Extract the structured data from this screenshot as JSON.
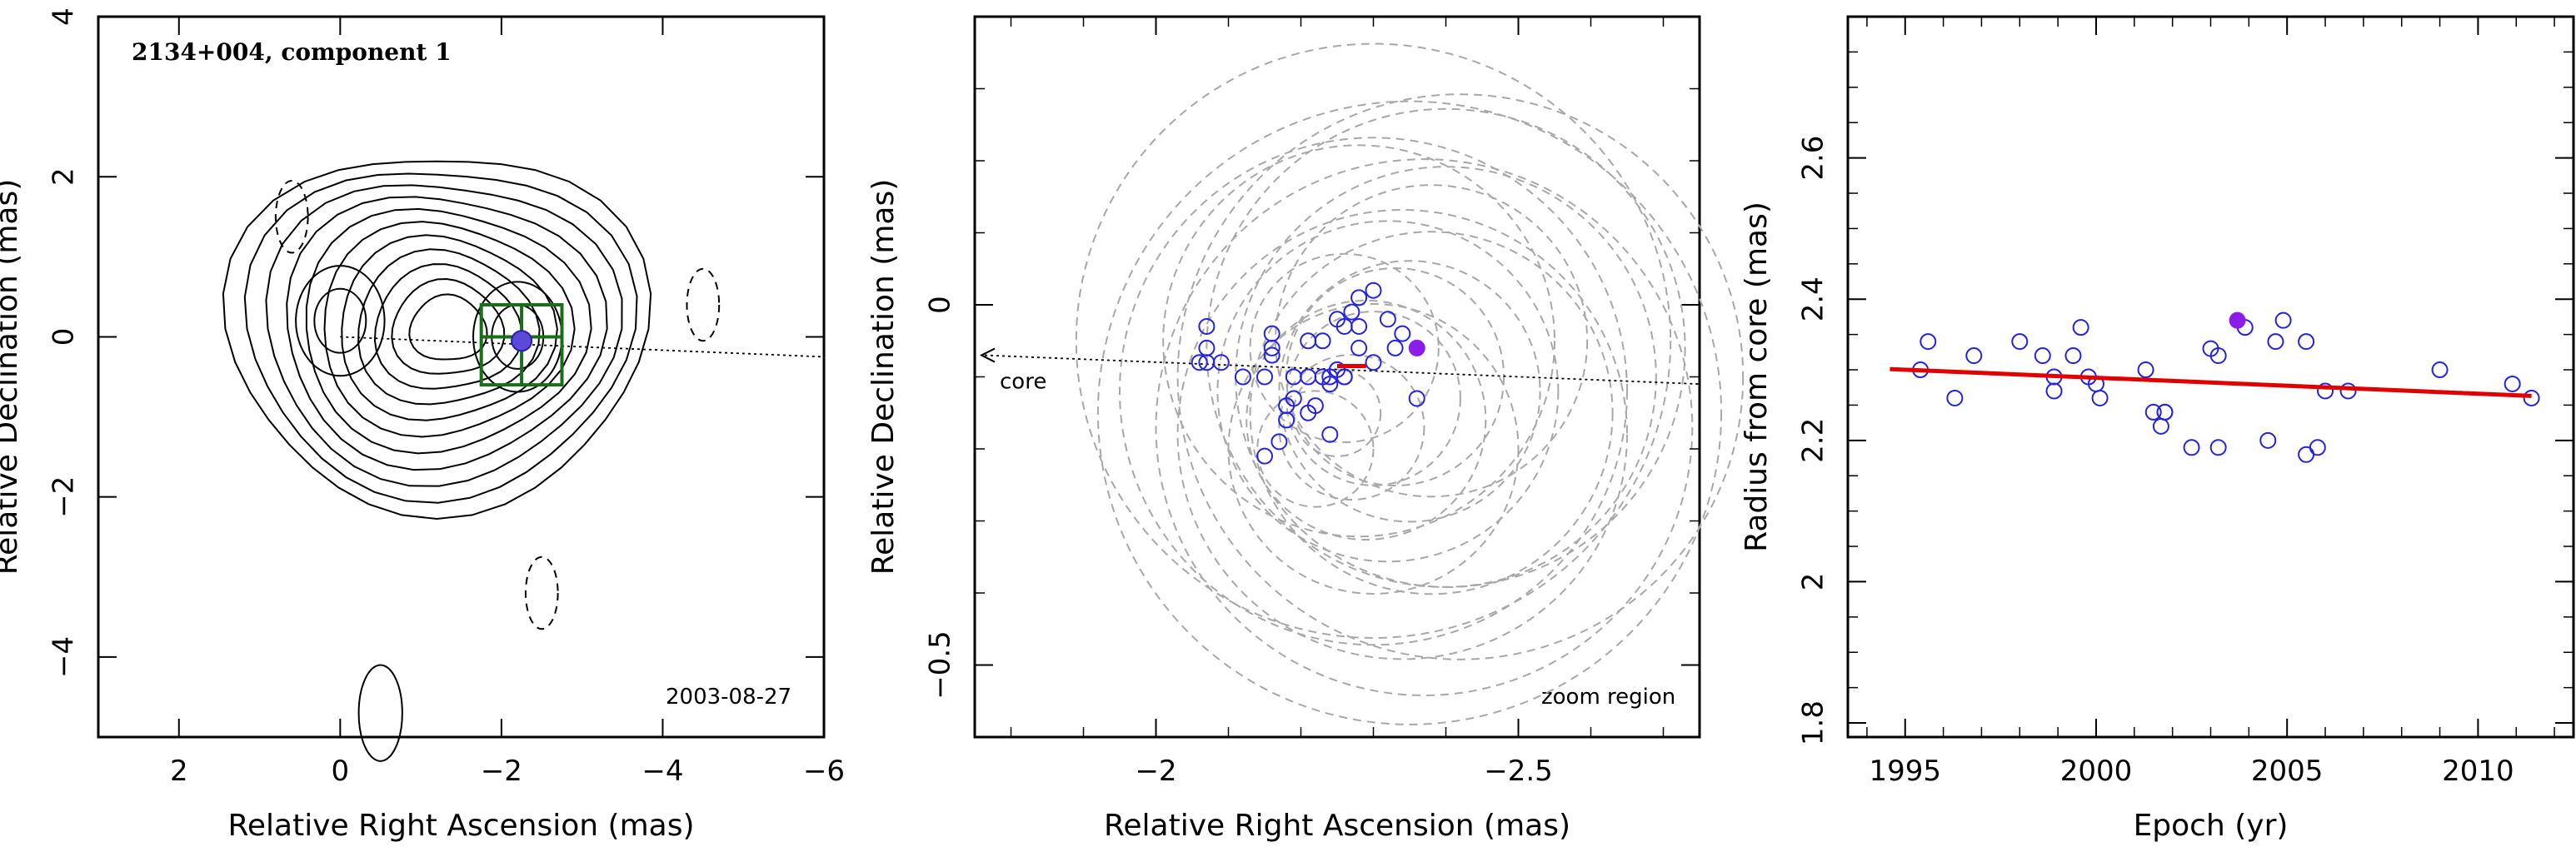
{
  "chart_data": [
    {
      "type": "contour",
      "title": "2134+004, component 1",
      "epoch_label": "2003-08-27",
      "xlabel": "Relative Right Ascension (mas)",
      "ylabel": "Relative Declination (mas)",
      "xlim": [
        3,
        -6
      ],
      "ylim": [
        -5,
        4
      ],
      "xticks": [
        2,
        0,
        -2,
        -4,
        -6
      ],
      "yticks": [
        -4,
        -2,
        0,
        2,
        4
      ],
      "contour_peaks": [
        {
          "x": 0.0,
          "y": 0.2
        },
        {
          "x": -2.2,
          "y": 0.0
        }
      ],
      "negative_contours": [
        {
          "x": 0.6,
          "y": 1.5
        },
        {
          "x": -4.5,
          "y": 0.4
        },
        {
          "x": -2.5,
          "y": -3.2
        }
      ],
      "lower_feature": {
        "x": -0.5,
        "y": -4.7
      },
      "component_position": {
        "x": -2.25,
        "y": -0.05
      },
      "zoom_box": {
        "x": [
          -1.75,
          -2.75
        ],
        "y": [
          -0.6,
          0.4
        ]
      },
      "core_direction_line": {
        "from": {
          "x": 0,
          "y": 0
        },
        "to": {
          "x": -6,
          "y": -0.25
        }
      }
    },
    {
      "type": "scatter",
      "annotation": "zoom region",
      "core_label": "core",
      "xlabel": "Relative Right Ascension (mas)",
      "ylabel": "Relative Declination (mas)",
      "xlim": [
        -1.75,
        -2.75
      ],
      "ylim": [
        -0.6,
        0.4
      ],
      "xticks": [
        -2,
        -2.5
      ],
      "yticks": [
        -0.5,
        0
      ],
      "points": [
        [
          -2.07,
          -0.03
        ],
        [
          -2.07,
          -0.06
        ],
        [
          -2.06,
          -0.08
        ],
        [
          -2.07,
          -0.08
        ],
        [
          -2.09,
          -0.08
        ],
        [
          -2.12,
          -0.1
        ],
        [
          -2.16,
          -0.04
        ],
        [
          -2.16,
          -0.06
        ],
        [
          -2.16,
          -0.07
        ],
        [
          -2.15,
          -0.1
        ],
        [
          -2.19,
          -0.1
        ],
        [
          -2.21,
          -0.05
        ],
        [
          -2.21,
          -0.1
        ],
        [
          -2.23,
          -0.1
        ],
        [
          -2.25,
          -0.09
        ],
        [
          -2.28,
          -0.06
        ],
        [
          -2.3,
          -0.08
        ],
        [
          -2.33,
          -0.06
        ],
        [
          -2.26,
          -0.03
        ],
        [
          -2.32,
          -0.02
        ],
        [
          -2.23,
          -0.05
        ],
        [
          -2.28,
          -0.03
        ],
        [
          -2.27,
          -0.01
        ],
        [
          -2.28,
          0.01
        ],
        [
          -2.3,
          0.02
        ],
        [
          -2.19,
          -0.13
        ],
        [
          -2.22,
          -0.14
        ],
        [
          -2.18,
          -0.14
        ],
        [
          -2.18,
          -0.16
        ],
        [
          -2.21,
          -0.15
        ],
        [
          -2.24,
          -0.11
        ],
        [
          -2.17,
          -0.19
        ],
        [
          -2.24,
          -0.18
        ],
        [
          -2.36,
          -0.13
        ],
        [
          -2.34,
          -0.04
        ],
        [
          -2.25,
          -0.02
        ],
        [
          -2.26,
          -0.1
        ],
        [
          -2.15,
          -0.21
        ],
        [
          -2.24,
          -0.1
        ],
        [
          -2.26,
          -0.1
        ]
      ],
      "highlight_point": [
        -2.36,
        -0.06
      ],
      "red_segment": {
        "x": [
          -2.25,
          -2.29
        ],
        "y": [
          -0.085,
          -0.085
        ]
      },
      "error_circles": [
        [
          -2.25,
          -0.15,
          0.12
        ],
        [
          -2.22,
          -0.2,
          0.16
        ],
        [
          -2.27,
          -0.17,
          0.2
        ],
        [
          -2.3,
          -0.13,
          0.24
        ],
        [
          -2.26,
          -0.06,
          0.26
        ],
        [
          -2.33,
          -0.1,
          0.3
        ],
        [
          -2.29,
          -0.16,
          0.33
        ],
        [
          -2.35,
          -0.12,
          0.36
        ],
        [
          -2.3,
          -0.2,
          0.4
        ],
        [
          -2.38,
          -0.05,
          0.43
        ],
        [
          -2.32,
          -0.12,
          0.47
        ],
        [
          -2.38,
          -0.15,
          0.5
        ],
        [
          -2.28,
          -0.05,
          0.54
        ],
        [
          -2.4,
          -0.1,
          0.58
        ],
        [
          -2.34,
          -0.18,
          0.62
        ],
        [
          -2.4,
          -0.06,
          0.66
        ],
        [
          -2.3,
          -0.12,
          0.7
        ],
        [
          -2.37,
          -0.17,
          0.74
        ],
        [
          -2.42,
          -0.1,
          0.78
        ],
        [
          -2.3,
          -0.05,
          0.82
        ],
        [
          -2.35,
          -0.15,
          0.86
        ]
      ]
    },
    {
      "type": "scatter",
      "xlabel": "Epoch (yr)",
      "ylabel": "Radius from core (mas)",
      "xlim": [
        1993.5,
        2012.5
      ],
      "ylim": [
        1.78,
        2.8
      ],
      "xticks": [
        1995,
        2000,
        2005,
        2010
      ],
      "yticks": [
        1.8,
        2,
        2.2,
        2.4,
        2.6
      ],
      "points": [
        [
          1995.4,
          2.3
        ],
        [
          1995.6,
          2.34
        ],
        [
          1996.3,
          2.26
        ],
        [
          1996.8,
          2.32
        ],
        [
          1998.0,
          2.34
        ],
        [
          1998.6,
          2.32
        ],
        [
          1998.9,
          2.27
        ],
        [
          1998.9,
          2.29
        ],
        [
          1999.4,
          2.32
        ],
        [
          1999.6,
          2.36
        ],
        [
          1999.8,
          2.29
        ],
        [
          2000.1,
          2.26
        ],
        [
          2000.0,
          2.28
        ],
        [
          2001.3,
          2.3
        ],
        [
          2001.5,
          2.24
        ],
        [
          2001.7,
          2.22
        ],
        [
          2001.8,
          2.24
        ],
        [
          2001.8,
          2.24
        ],
        [
          2002.5,
          2.19
        ],
        [
          2003.0,
          2.33
        ],
        [
          2003.2,
          2.32
        ],
        [
          2003.2,
          2.19
        ],
        [
          2003.9,
          2.36
        ],
        [
          2004.5,
          2.2
        ],
        [
          2004.7,
          2.34
        ],
        [
          2004.9,
          2.37
        ],
        [
          2005.5,
          2.34
        ],
        [
          2005.5,
          2.18
        ],
        [
          2005.8,
          2.19
        ],
        [
          2006.0,
          2.27
        ],
        [
          2006.6,
          2.27
        ],
        [
          2009.0,
          2.3
        ],
        [
          2010.9,
          2.28
        ],
        [
          2011.4,
          2.26
        ]
      ],
      "highlight_point": [
        2003.7,
        2.37
      ],
      "fit_line": {
        "x": [
          1994.6,
          2011.4
        ],
        "y": [
          2.301,
          2.263
        ]
      }
    }
  ]
}
